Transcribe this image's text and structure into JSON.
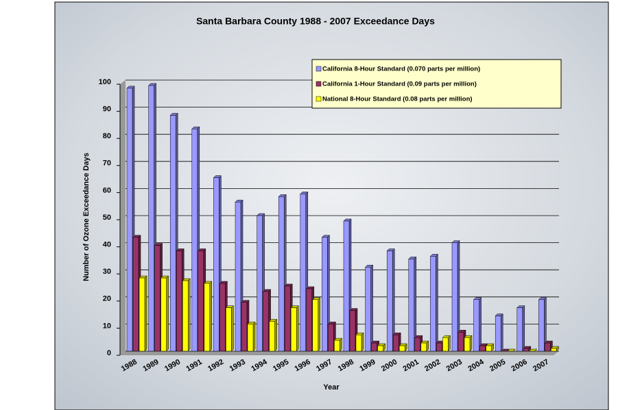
{
  "chart_data": {
    "type": "bar",
    "title": "Santa Barbara County 1988 - 2007 Exceedance Days",
    "x_label": "Year",
    "y_label": "Number of Ozone Exceedance  Days",
    "categories": [
      "1988",
      "1989",
      "1990",
      "1991",
      "1992",
      "1993",
      "1994",
      "1995",
      "1996",
      "1997",
      "1998",
      "1999",
      "2000",
      "2001",
      "2002",
      "2003",
      "2004",
      "2005",
      "2006",
      "2007"
    ],
    "series": [
      {
        "name": "California 8-Hour Standard (0.070 parts per million)",
        "color": "#9999ff",
        "values": [
          97,
          98,
          87,
          82,
          64,
          55,
          50,
          57,
          58,
          42,
          48,
          31,
          37,
          34,
          35,
          40,
          19,
          13,
          16,
          19
        ]
      },
      {
        "name": "California 1-Hour Standard (0.09 parts per million)",
        "color": "#993366",
        "values": [
          42,
          39,
          37,
          37,
          25,
          18,
          22,
          24,
          23,
          10,
          15,
          3,
          6,
          5,
          3,
          7,
          2,
          0,
          1,
          3
        ]
      },
      {
        "name": "National 8-Hour Standard (0.08 parts per million)",
        "color": "#ffff00",
        "values": [
          27,
          27,
          26,
          25,
          16,
          10,
          11,
          16,
          19,
          4,
          6,
          2,
          2,
          3,
          5,
          5,
          2,
          0,
          0,
          1
        ]
      }
    ],
    "ylim": [
      0,
      100
    ],
    "yticks": [
      0,
      10,
      20,
      30,
      40,
      50,
      60,
      70,
      80,
      90,
      100
    ],
    "grid": true,
    "legend": "top-right"
  }
}
